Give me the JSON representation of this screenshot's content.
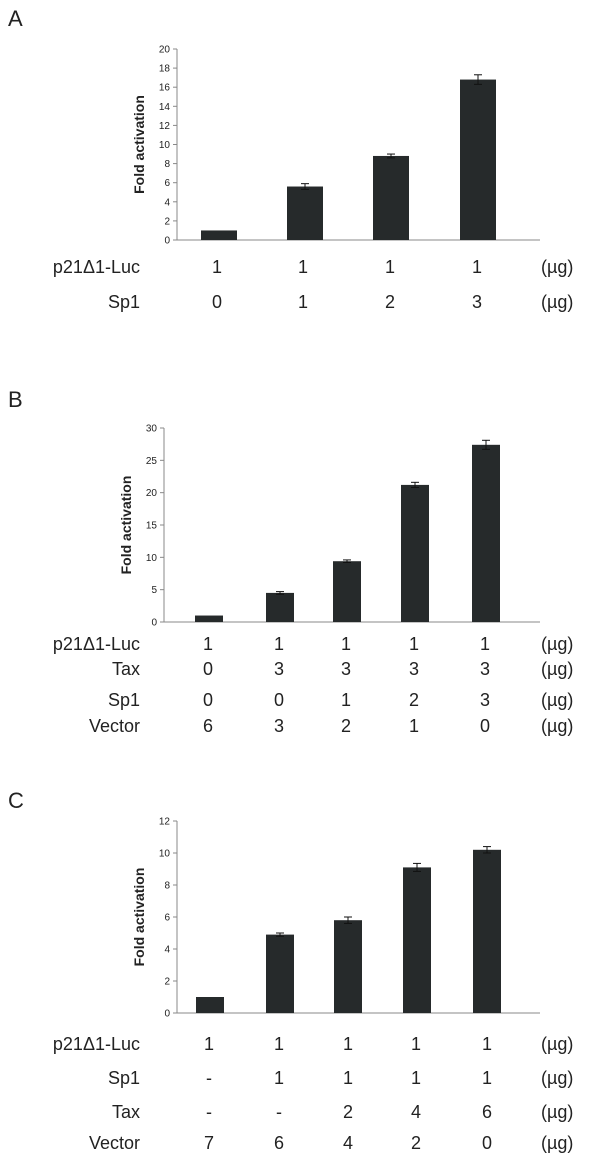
{
  "panels": [
    {
      "letter": "A",
      "chart_data": {
        "type": "bar",
        "ylabel": "Fold activation",
        "ylim": [
          0,
          20
        ],
        "yticks": [
          "0",
          "2",
          "4",
          "6",
          "8",
          "10",
          "12",
          "14",
          "16",
          "18",
          "20"
        ],
        "values": [
          1.0,
          5.6,
          8.8,
          16.8
        ],
        "errors": [
          0.0,
          0.3,
          0.2,
          0.5
        ],
        "bar_color": "#262a2b"
      },
      "conditions": [
        {
          "label": "p21Δ1-Luc",
          "values": [
            "1",
            "1",
            "1",
            "1"
          ],
          "unit": "(µg)"
        },
        {
          "label": "Sp1",
          "values": [
            "0",
            "1",
            "2",
            "3"
          ],
          "unit": "(µg)"
        }
      ]
    },
    {
      "letter": "B",
      "chart_data": {
        "type": "bar",
        "ylabel": "Fold activation",
        "ylim": [
          0,
          30
        ],
        "yticks": [
          "0",
          "5",
          "10",
          "15",
          "20",
          "25",
          "30"
        ],
        "values": [
          1.0,
          4.5,
          9.4,
          21.2,
          27.4
        ],
        "errors": [
          0.0,
          0.2,
          0.2,
          0.4,
          0.7
        ],
        "bar_color": "#262a2b"
      },
      "conditions": [
        {
          "label": "p21Δ1-Luc",
          "values": [
            "1",
            "1",
            "1",
            "1",
            "1"
          ],
          "unit": "(µg)"
        },
        {
          "label": "Tax",
          "values": [
            "0",
            "3",
            "3",
            "3",
            "3"
          ],
          "unit": "(µg)"
        },
        {
          "label": "Sp1",
          "values": [
            "0",
            "0",
            "1",
            "2",
            "3"
          ],
          "unit": "(µg)"
        },
        {
          "label": "Vector",
          "values": [
            "6",
            "3",
            "2",
            "1",
            "0"
          ],
          "unit": "(µg)"
        }
      ]
    },
    {
      "letter": "C",
      "chart_data": {
        "type": "bar",
        "ylabel": "Fold activation",
        "ylim": [
          0,
          12
        ],
        "yticks": [
          "0",
          "2",
          "4",
          "6",
          "8",
          "10",
          "12"
        ],
        "values": [
          1.0,
          4.9,
          5.8,
          9.1,
          10.2
        ],
        "errors": [
          0.0,
          0.1,
          0.2,
          0.25,
          0.2
        ],
        "bar_color": "#262a2b"
      },
      "conditions": [
        {
          "label": "p21Δ1-Luc",
          "values": [
            "1",
            "1",
            "1",
            "1",
            "1"
          ],
          "unit": "(µg)"
        },
        {
          "label": "Sp1",
          "values": [
            "-",
            "1",
            "1",
            "1",
            "1"
          ],
          "unit": "(µg)"
        },
        {
          "label": "Tax",
          "values": [
            "-",
            "-",
            "2",
            "4",
            "6"
          ],
          "unit": "(µg)"
        },
        {
          "label": "Vector",
          "values": [
            "7",
            "6",
            "4",
            "2",
            "0"
          ],
          "unit": "(µg)"
        }
      ]
    }
  ]
}
